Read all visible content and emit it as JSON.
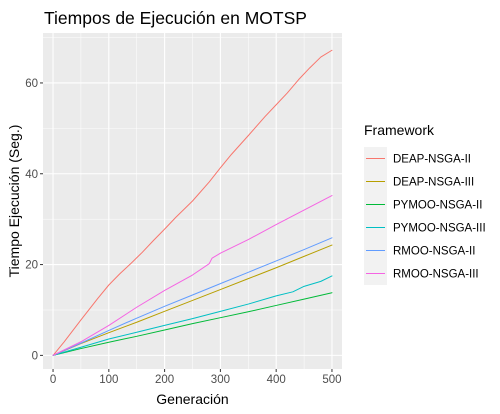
{
  "chart_data": {
    "type": "line",
    "title": "Tiempos de Ejecución en MOTSP",
    "xlabel": "Generación",
    "ylabel": "Tiempo Ejecución (Seg.)",
    "xlim": [
      -18,
      518
    ],
    "ylim": [
      -3.0,
      71.0
    ],
    "xticks": [
      0,
      100,
      200,
      300,
      400,
      500
    ],
    "yticks": [
      0,
      20,
      40,
      60
    ],
    "grid": true,
    "legend": {
      "title": "Framework",
      "placement": "right"
    },
    "series": [
      {
        "name": "DEAP-NSGA-II",
        "color": "#F8766D",
        "x": [
          0,
          20,
          50,
          80,
          100,
          120,
          140,
          160,
          180,
          200,
          220,
          250,
          280,
          300,
          320,
          350,
          380,
          400,
          420,
          440,
          460,
          480,
          500
        ],
        "y": [
          0,
          3.0,
          7.8,
          12.5,
          15.5,
          18.0,
          20.3,
          22.7,
          25.3,
          27.8,
          30.4,
          34.0,
          38.2,
          41.3,
          44.3,
          48.4,
          52.6,
          55.2,
          57.8,
          60.7,
          63.3,
          65.7,
          67.2
        ]
      },
      {
        "name": "DEAP-NSGA-III",
        "color": "#B79F00",
        "x": [
          0,
          50,
          100,
          150,
          200,
          250,
          300,
          350,
          400,
          450,
          500
        ],
        "y": [
          0,
          2.6,
          5.0,
          7.3,
          9.7,
          12.1,
          14.5,
          16.9,
          19.3,
          21.8,
          24.3
        ]
      },
      {
        "name": "PYMOO-NSGA-II",
        "color": "#00BA38",
        "x": [
          0,
          50,
          100,
          150,
          200,
          250,
          300,
          350,
          400,
          450,
          500
        ],
        "y": [
          0,
          1.5,
          2.9,
          4.2,
          5.6,
          7.0,
          8.3,
          9.6,
          11.0,
          12.4,
          13.8
        ]
      },
      {
        "name": "PYMOO-NSGA-III",
        "color": "#00BFC4",
        "x": [
          0,
          50,
          100,
          150,
          200,
          250,
          300,
          350,
          400,
          430,
          450,
          480,
          500
        ],
        "y": [
          0,
          1.8,
          3.6,
          5.1,
          6.6,
          8.1,
          9.7,
          11.3,
          13.1,
          14.0,
          15.2,
          16.3,
          17.5
        ]
      },
      {
        "name": "RMOO-NSGA-II",
        "color": "#619CFF",
        "x": [
          0,
          50,
          100,
          150,
          200,
          250,
          300,
          350,
          400,
          450,
          500
        ],
        "y": [
          0,
          2.7,
          5.5,
          8.2,
          10.8,
          13.3,
          15.8,
          18.3,
          20.8,
          23.3,
          25.9
        ]
      },
      {
        "name": "RMOO-NSGA-III",
        "color": "#F564E3",
        "x": [
          0,
          50,
          100,
          150,
          200,
          250,
          280,
          285,
          300,
          350,
          400,
          450,
          500
        ],
        "y": [
          0,
          3.0,
          6.6,
          10.6,
          14.3,
          17.7,
          20.2,
          21.4,
          22.5,
          25.5,
          28.8,
          32.0,
          35.2
        ]
      }
    ]
  }
}
